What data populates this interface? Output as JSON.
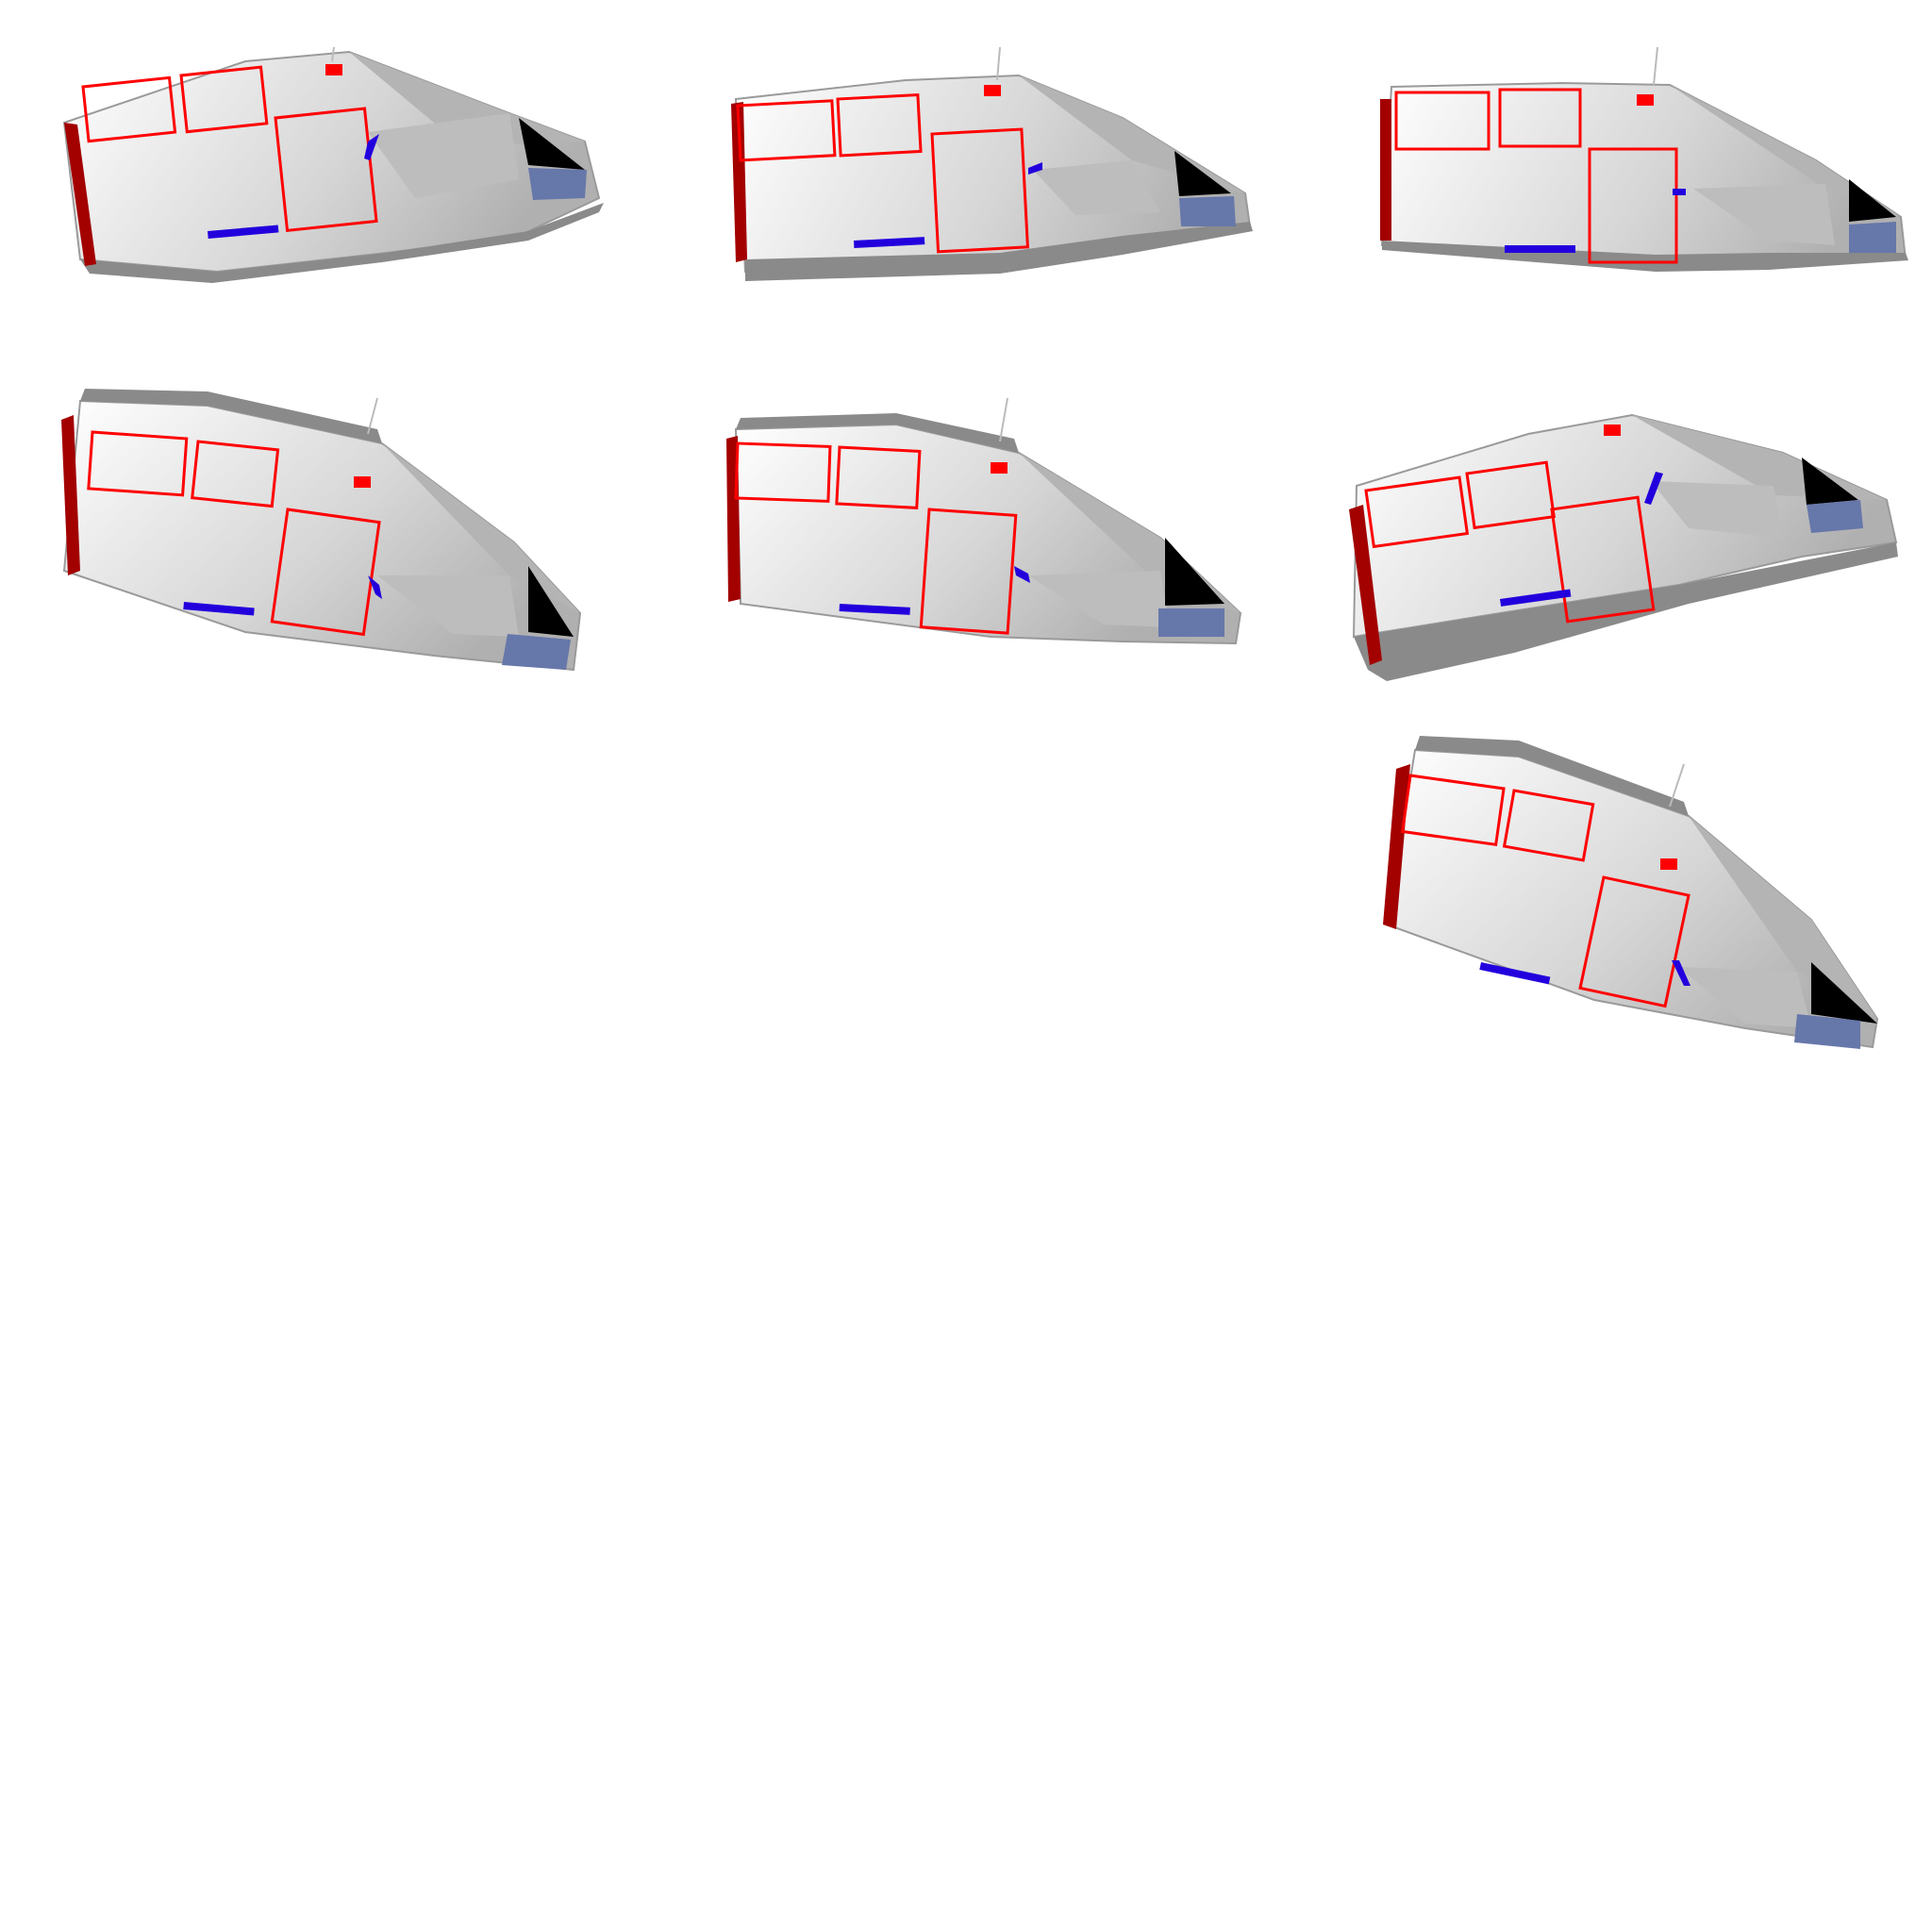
{
  "sheet": {
    "background": "#ffffff",
    "frame_count": 7,
    "frames": [
      {
        "id": 1,
        "pose": "level-yaw-left"
      },
      {
        "id": 2,
        "pose": "level"
      },
      {
        "id": 3,
        "pose": "level-yaw-right"
      },
      {
        "id": 4,
        "pose": "nose-down"
      },
      {
        "id": 5,
        "pose": "slight-nose-down"
      },
      {
        "id": 6,
        "pose": "level-yaw-left"
      },
      {
        "id": 7,
        "pose": "nose-down"
      }
    ]
  },
  "colors": {
    "hull_light": "#f2f2f2",
    "hull_mid": "#c8c8c8",
    "hull_dark": "#8c8c8c",
    "panel_outline": "#ff0000",
    "rear_stripe": "#a30000",
    "blue_bar": "#2200dd",
    "window_black": "#000000",
    "window_blue": "#6677aa",
    "antenna": "#bbbbbb"
  }
}
